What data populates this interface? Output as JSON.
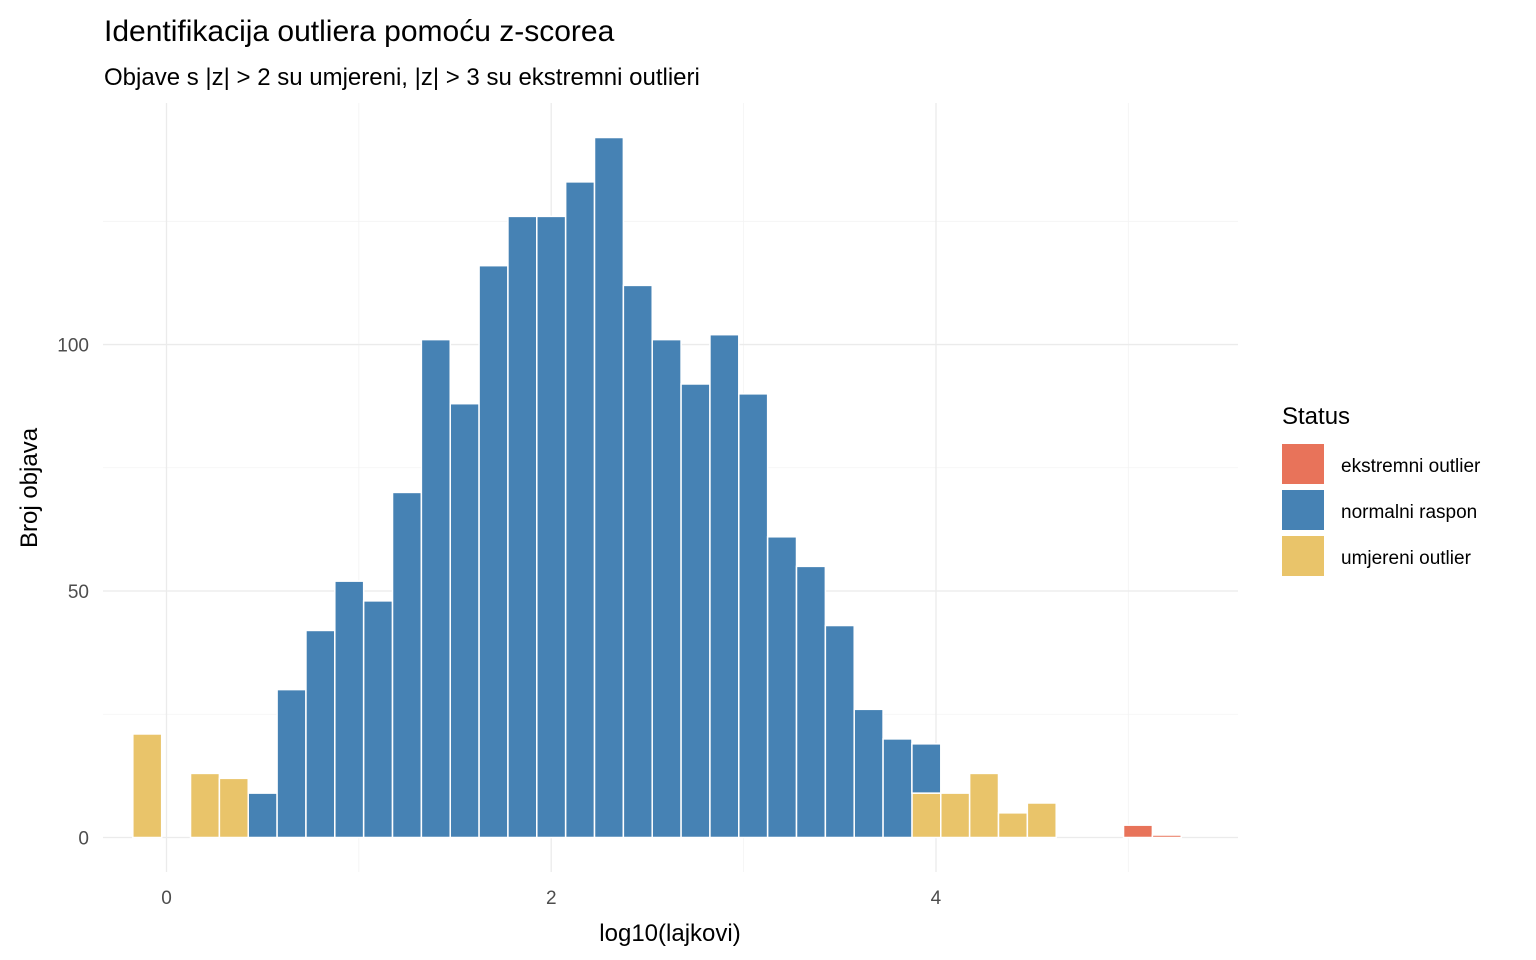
{
  "chart_data": {
    "type": "bar",
    "title": "Identifikacija outliera pomoću z-scorea",
    "subtitle": "Objave s |z| > 2 su umjereni, |z| > 3 su ekstremni outlieri",
    "xlabel": "log10(lajkovi)",
    "ylabel": "Broj objava",
    "x_ticks": [
      "0",
      "2",
      "4"
    ],
    "y_ticks": [
      "0",
      "50",
      "100"
    ],
    "xlim": [
      -0.33,
      5.57
    ],
    "ylim": [
      -7,
      149
    ],
    "bin_width": 0.15,
    "grid": true,
    "legend": {
      "title": "Status",
      "position": "right",
      "items": [
        {
          "label": "ekstremni outlier",
          "color": "#E8735A"
        },
        {
          "label": "normalni raspon",
          "color": "#4682B4"
        },
        {
          "label": "umjereni outlier",
          "color": "#E9C46A"
        }
      ]
    },
    "series": [
      {
        "name": "ekstremni outlier",
        "color": "#E8735A",
        "x": [
          5.05,
          5.2
        ],
        "values": [
          2.5,
          0.5
        ]
      },
      {
        "name": "normalni raspon",
        "color": "#4682B4",
        "x": [
          0.5,
          0.65,
          0.8,
          0.95,
          1.1,
          1.25,
          1.4,
          1.55,
          1.7,
          1.85,
          2.0,
          2.15,
          2.3,
          2.45,
          2.6,
          2.75,
          2.9,
          3.05,
          3.2,
          3.35,
          3.5,
          3.65,
          3.8,
          3.95
        ],
        "values": [
          9,
          30,
          42,
          52,
          48,
          70,
          101,
          88,
          116,
          126,
          126,
          133,
          142,
          112,
          101,
          92,
          102,
          90,
          61,
          55,
          43,
          26,
          20,
          10
        ]
      },
      {
        "name": "umjereni outlier",
        "color": "#E9C46A",
        "x": [
          -0.1,
          0.2,
          0.35,
          3.95,
          4.1,
          4.25,
          4.4,
          4.55
        ],
        "values": [
          21,
          13,
          12,
          9,
          9,
          13,
          5,
          7
        ]
      }
    ]
  }
}
